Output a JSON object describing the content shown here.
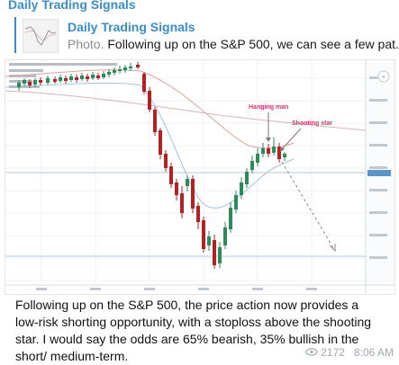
{
  "header": {
    "channel_title": "Daily Trading Signals"
  },
  "reply": {
    "name": "Daily Trading Signals",
    "kind": "Photo.",
    "preview": "Following up on the S&P 500, we can see a few pat..."
  },
  "chart": {
    "annotation_hanging_man": "Hanging man",
    "annotation_shooting_star": "Shooting star",
    "bull_color": "#2e8b57",
    "bear_color": "#b22222",
    "annotation_color": "#d6336c"
  },
  "message": {
    "text": "Following up on the S&P 500, the price action now provides a low-risk shorting opportunity, with a stoploss above the shooting star. I would say the odds are 65% bearish, 35% bullish in the short/ medium-term."
  },
  "meta": {
    "views": "2172",
    "time": "8:06 AM"
  }
}
